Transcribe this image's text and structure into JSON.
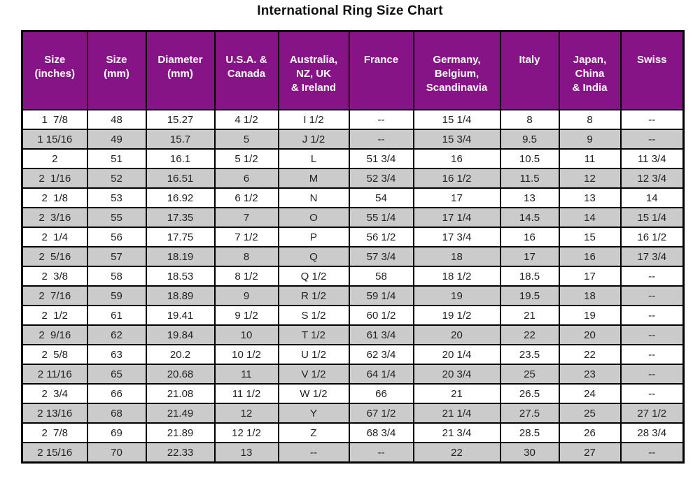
{
  "page": {
    "title": "International Ring Size Chart"
  },
  "colors": {
    "header_bg": "#871487",
    "header_text": "#FFFFFF",
    "row_shaded_bg": "#CBCBCB",
    "row_bg": "#FFFFFF",
    "border": "#000000",
    "cell_text": "#222222",
    "title_text": "#111111"
  },
  "chart_data": {
    "type": "table",
    "title": "International Ring Size Chart",
    "columns": [
      "Size\n(inches)",
      "Size\n(mm)",
      "Diameter\n(mm)",
      "U.S.A. &\nCanada",
      "Australia,\nNZ, UK\n& Ireland",
      "France",
      "Germany,\nBelgium,\nScandinavia",
      "Italy",
      "Japan,\nChina\n& India",
      "Swiss"
    ],
    "rows": [
      [
        "1  7/8",
        "48",
        "15.27",
        "4 1/2",
        "I 1/2",
        "--",
        "15 1/4",
        "8",
        "8",
        "--"
      ],
      [
        "1 15/16",
        "49",
        "15.7",
        "5",
        "J 1/2",
        "--",
        "15 3/4",
        "9.5",
        "9",
        "--"
      ],
      [
        "2",
        "51",
        "16.1",
        "5 1/2",
        "L",
        "51 3/4",
        "16",
        "10.5",
        "11",
        "11 3/4"
      ],
      [
        "2  1/16",
        "52",
        "16.51",
        "6",
        "M",
        "52 3/4",
        "16 1/2",
        "11.5",
        "12",
        "12 3/4"
      ],
      [
        "2  1/8",
        "53",
        "16.92",
        "6 1/2",
        "N",
        "54",
        "17",
        "13",
        "13",
        "14"
      ],
      [
        "2  3/16",
        "55",
        "17.35",
        "7",
        "O",
        "55 1/4",
        "17 1/4",
        "14.5",
        "14",
        "15 1/4"
      ],
      [
        "2  1/4",
        "56",
        "17.75",
        "7 1/2",
        "P",
        "56 1/2",
        "17 3/4",
        "16",
        "15",
        "16 1/2"
      ],
      [
        "2  5/16",
        "57",
        "18.19",
        "8",
        "Q",
        "57 3/4",
        "18",
        "17",
        "16",
        "17 3/4"
      ],
      [
        "2  3/8",
        "58",
        "18.53",
        "8 1/2",
        "Q 1/2",
        "58",
        "18 1/2",
        "18.5",
        "17",
        "--"
      ],
      [
        "2  7/16",
        "59",
        "18.89",
        "9",
        "R 1/2",
        "59 1/4",
        "19",
        "19.5",
        "18",
        "--"
      ],
      [
        "2  1/2",
        "61",
        "19.41",
        "9 1/2",
        "S 1/2",
        "60 1/2",
        "19 1/2",
        "21",
        "19",
        "--"
      ],
      [
        "2  9/16",
        "62",
        "19.84",
        "10",
        "T 1/2",
        "61 3/4",
        "20",
        "22",
        "20",
        "--"
      ],
      [
        "2  5/8",
        "63",
        "20.2",
        "10 1/2",
        "U 1/2",
        "62 3/4",
        "20 1/4",
        "23.5",
        "22",
        "--"
      ],
      [
        "2 11/16",
        "65",
        "20.68",
        "11",
        "V 1/2",
        "64 1/4",
        "20 3/4",
        "25",
        "23",
        "--"
      ],
      [
        "2  3/4",
        "66",
        "21.08",
        "11 1/2",
        "W 1/2",
        "66",
        "21",
        "26.5",
        "24",
        "--"
      ],
      [
        "2 13/16",
        "68",
        "21.49",
        "12",
        "Y",
        "67 1/2",
        "21 1/4",
        "27.5",
        "25",
        "27 1/2"
      ],
      [
        "2  7/8",
        "69",
        "21.89",
        "12 1/2",
        "Z",
        "68 3/4",
        "21 3/4",
        "28.5",
        "26",
        "28 3/4"
      ],
      [
        "2 15/16",
        "70",
        "22.33",
        "13",
        "--",
        "--",
        "22",
        "30",
        "27",
        "--"
      ]
    ],
    "shaded_row_indexes": [
      1,
      3,
      5,
      7,
      9,
      11,
      13,
      15,
      17
    ],
    "legend_position": "none",
    "grid": true
  }
}
